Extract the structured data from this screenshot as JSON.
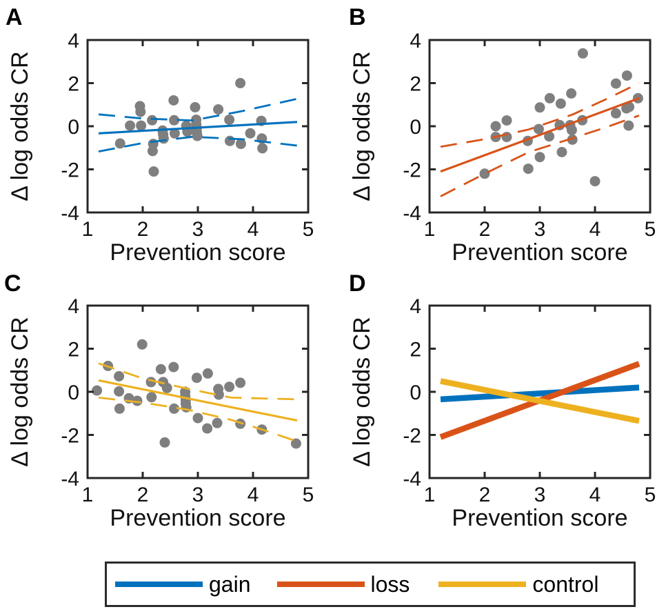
{
  "style": {
    "background": "#ffffff",
    "axis_color": "#262626",
    "text_color": "#111111",
    "marker_color": "#7f7f7f",
    "marker_radius": 7.5,
    "fit_line_width": 3.2,
    "ci_line_width": 2.8,
    "ci_dash": "24 14",
    "model_line_width": 8.5
  },
  "chart_data": [
    {
      "panel": "A",
      "type": "scatter",
      "series": "gain",
      "color": "#0072BD",
      "xlabel": "Prevention score",
      "ylabel": "Δ log odds CR",
      "xlim": [
        1,
        5
      ],
      "ylim": [
        -4,
        4
      ],
      "xticks": [
        1,
        2,
        3,
        4,
        5
      ],
      "yticks": [
        4,
        2,
        0,
        -2,
        -4
      ],
      "points": [
        [
          1.59,
          -0.8
        ],
        [
          1.77,
          0.03
        ],
        [
          1.95,
          0.93
        ],
        [
          1.96,
          0.67
        ],
        [
          1.97,
          0.03
        ],
        [
          2.17,
          0.28
        ],
        [
          2.19,
          -0.82
        ],
        [
          2.18,
          -1.15
        ],
        [
          2.2,
          -2.1
        ],
        [
          2.36,
          -0.2
        ],
        [
          2.37,
          -0.38
        ],
        [
          2.38,
          -0.57
        ],
        [
          2.56,
          1.2
        ],
        [
          2.57,
          0.28
        ],
        [
          2.58,
          -0.33
        ],
        [
          2.79,
          0.02
        ],
        [
          2.81,
          -0.25
        ],
        [
          2.95,
          0.88
        ],
        [
          2.97,
          0.3
        ],
        [
          2.97,
          0.1
        ],
        [
          2.98,
          -0.08
        ],
        [
          2.98,
          -0.28
        ],
        [
          2.99,
          -0.45
        ],
        [
          3.37,
          0.78
        ],
        [
          3.57,
          0.3
        ],
        [
          3.58,
          -0.68
        ],
        [
          3.77,
          2.0
        ],
        [
          3.78,
          -0.82
        ],
        [
          3.95,
          -0.33
        ],
        [
          4.15,
          0.25
        ],
        [
          4.16,
          -0.57
        ],
        [
          4.17,
          -1.02
        ]
      ],
      "fit_line": [
        [
          1.2,
          -0.33
        ],
        [
          4.8,
          0.2
        ]
      ],
      "ci_upper": [
        [
          1.2,
          0.55
        ],
        [
          2.0,
          0.36
        ],
        [
          2.9,
          0.27
        ],
        [
          3.8,
          0.7
        ],
        [
          4.8,
          1.27
        ]
      ],
      "ci_lower": [
        [
          1.2,
          -1.17
        ],
        [
          2.0,
          -0.78
        ],
        [
          2.9,
          -0.49
        ],
        [
          3.8,
          -0.6
        ],
        [
          4.8,
          -0.9
        ]
      ]
    },
    {
      "panel": "B",
      "type": "scatter",
      "series": "loss",
      "color": "#D95319",
      "xlabel": "Prevention score",
      "ylabel": "Δ log odds CR",
      "xlim": [
        1,
        5
      ],
      "ylim": [
        -4,
        4
      ],
      "xticks": [
        1,
        2,
        3,
        4,
        5
      ],
      "yticks": [
        4,
        2,
        0,
        -2,
        -4
      ],
      "points": [
        [
          2.0,
          -2.2
        ],
        [
          2.2,
          0.0
        ],
        [
          2.2,
          -0.5
        ],
        [
          2.4,
          0.27
        ],
        [
          2.4,
          -0.5
        ],
        [
          2.78,
          -0.68
        ],
        [
          2.79,
          -1.97
        ],
        [
          3.0,
          0.87
        ],
        [
          2.98,
          -0.13
        ],
        [
          3.0,
          -1.43
        ],
        [
          3.18,
          1.3
        ],
        [
          3.17,
          -0.47
        ],
        [
          3.38,
          1.05
        ],
        [
          3.36,
          0.05
        ],
        [
          3.4,
          -1.2
        ],
        [
          3.57,
          1.52
        ],
        [
          3.55,
          0.05
        ],
        [
          3.58,
          -0.18
        ],
        [
          3.59,
          -0.62
        ],
        [
          3.78,
          3.38
        ],
        [
          3.77,
          0.28
        ],
        [
          4.0,
          -2.55
        ],
        [
          4.38,
          1.98
        ],
        [
          4.38,
          0.6
        ],
        [
          4.58,
          2.35
        ],
        [
          4.57,
          0.83
        ],
        [
          4.62,
          0.9
        ],
        [
          4.61,
          0.03
        ],
        [
          4.78,
          1.3
        ]
      ],
      "fit_line": [
        [
          1.2,
          -2.1
        ],
        [
          4.8,
          1.3
        ]
      ],
      "ci_upper": [
        [
          1.2,
          -0.95
        ],
        [
          2.0,
          -0.6
        ],
        [
          2.8,
          -0.15
        ],
        [
          3.6,
          0.55
        ],
        [
          4.2,
          1.25
        ],
        [
          4.8,
          2.0
        ]
      ],
      "ci_lower": [
        [
          1.2,
          -3.25
        ],
        [
          2.0,
          -2.2
        ],
        [
          2.8,
          -1.2
        ],
        [
          3.6,
          -0.55
        ],
        [
          4.2,
          -0.05
        ],
        [
          4.8,
          0.5
        ]
      ]
    },
    {
      "panel": "C",
      "type": "scatter",
      "series": "control",
      "color": "#EDB120",
      "xlabel": "Prevention score",
      "ylabel": "Δ log odds CR",
      "xlim": [
        1,
        5
      ],
      "ylim": [
        -4,
        4
      ],
      "xticks": [
        1,
        2,
        3,
        4,
        5
      ],
      "yticks": [
        4,
        2,
        0,
        -2,
        -4
      ],
      "points": [
        [
          1.17,
          0.06
        ],
        [
          1.37,
          1.2
        ],
        [
          1.57,
          0.72
        ],
        [
          1.57,
          0.02
        ],
        [
          1.58,
          -0.78
        ],
        [
          1.75,
          -0.3
        ],
        [
          1.9,
          -0.42
        ],
        [
          1.99,
          2.2
        ],
        [
          2.15,
          0.45
        ],
        [
          2.16,
          -0.25
        ],
        [
          2.33,
          1.05
        ],
        [
          2.37,
          0.45
        ],
        [
          2.44,
          0.18
        ],
        [
          2.4,
          -2.35
        ],
        [
          2.56,
          1.15
        ],
        [
          2.57,
          -0.78
        ],
        [
          2.77,
          0.0
        ],
        [
          2.77,
          -0.2
        ],
        [
          2.78,
          -0.38
        ],
        [
          2.78,
          -0.55
        ],
        [
          2.79,
          -0.72
        ],
        [
          2.98,
          0.65
        ],
        [
          3.0,
          -1.22
        ],
        [
          3.18,
          0.85
        ],
        [
          3.17,
          -1.7
        ],
        [
          3.37,
          0.13
        ],
        [
          3.38,
          -0.13
        ],
        [
          3.35,
          -1.45
        ],
        [
          3.57,
          0.23
        ],
        [
          3.77,
          0.42
        ],
        [
          3.77,
          -1.48
        ],
        [
          4.16,
          -1.75
        ],
        [
          4.78,
          -2.4
        ]
      ],
      "fit_line": [
        [
          1.2,
          0.53
        ],
        [
          4.8,
          -1.33
        ]
      ],
      "ci_upper": [
        [
          1.2,
          1.32
        ],
        [
          2.0,
          0.62
        ],
        [
          2.8,
          0.15
        ],
        [
          3.6,
          -0.27
        ],
        [
          4.8,
          -0.35
        ]
      ],
      "ci_lower": [
        [
          1.2,
          -0.27
        ],
        [
          2.0,
          -0.5
        ],
        [
          2.8,
          -0.82
        ],
        [
          3.6,
          -1.3
        ],
        [
          4.2,
          -1.78
        ],
        [
          4.8,
          -2.3
        ]
      ]
    },
    {
      "panel": "D",
      "type": "line",
      "xlabel": "Prevention score",
      "ylabel": "Δ log odds CR",
      "xlim": [
        1,
        5
      ],
      "ylim": [
        -4,
        4
      ],
      "xticks": [
        1,
        2,
        3,
        4,
        5
      ],
      "yticks": [
        4,
        2,
        0,
        -2,
        -4
      ],
      "lines": [
        {
          "name": "gain",
          "color": "#0072BD",
          "points": [
            [
              1.2,
              -0.35
            ],
            [
              4.8,
              0.2
            ]
          ]
        },
        {
          "name": "loss",
          "color": "#D95319",
          "points": [
            [
              1.2,
              -2.1
            ],
            [
              4.8,
              1.3
            ]
          ]
        },
        {
          "name": "control",
          "color": "#EDB120",
          "points": [
            [
              1.2,
              0.5
            ],
            [
              4.8,
              -1.35
            ]
          ]
        }
      ]
    }
  ],
  "legend": {
    "entries": [
      {
        "label": "gain",
        "color": "#0072BD"
      },
      {
        "label": "loss",
        "color": "#D95319"
      },
      {
        "label": "control",
        "color": "#EDB120"
      }
    ]
  }
}
